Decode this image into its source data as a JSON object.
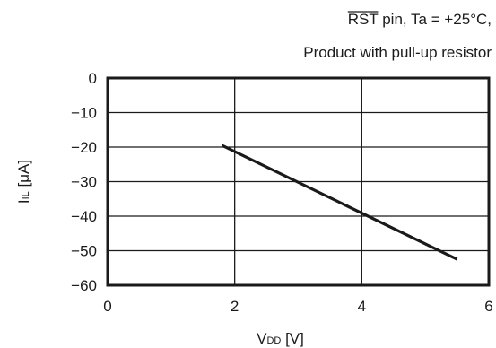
{
  "chart_data": {
    "type": "line",
    "title_lines": [
      "RST pin, Ta = +25°C,",
      "Product with pull-up resistor"
    ],
    "title_overlined": "RST",
    "title_rest": " pin, Ta = +25°C,",
    "subtitle": "Product with pull-up resistor",
    "xlabel": {
      "main": "V",
      "sub": "DD",
      "unit": " [V]"
    },
    "ylabel": {
      "main": "I",
      "sub": "IL",
      "unit": " [μA]"
    },
    "xlim": [
      0,
      6
    ],
    "ylim": [
      -60,
      0
    ],
    "x_ticks": [
      0,
      2,
      4,
      6
    ],
    "x_tick_labels": [
      "0",
      "2",
      "4",
      "6"
    ],
    "y_ticks": [
      0,
      -10,
      -20,
      -30,
      -40,
      -50,
      -60
    ],
    "y_tick_labels": [
      "0",
      "−10",
      "−20",
      "−30",
      "−40",
      "−50",
      "−60"
    ],
    "grid": true,
    "series": [
      {
        "x": [
          1.8,
          5.5
        ],
        "y": [
          -19.5,
          -52.5
        ],
        "color": "#1a1a1a"
      }
    ]
  }
}
